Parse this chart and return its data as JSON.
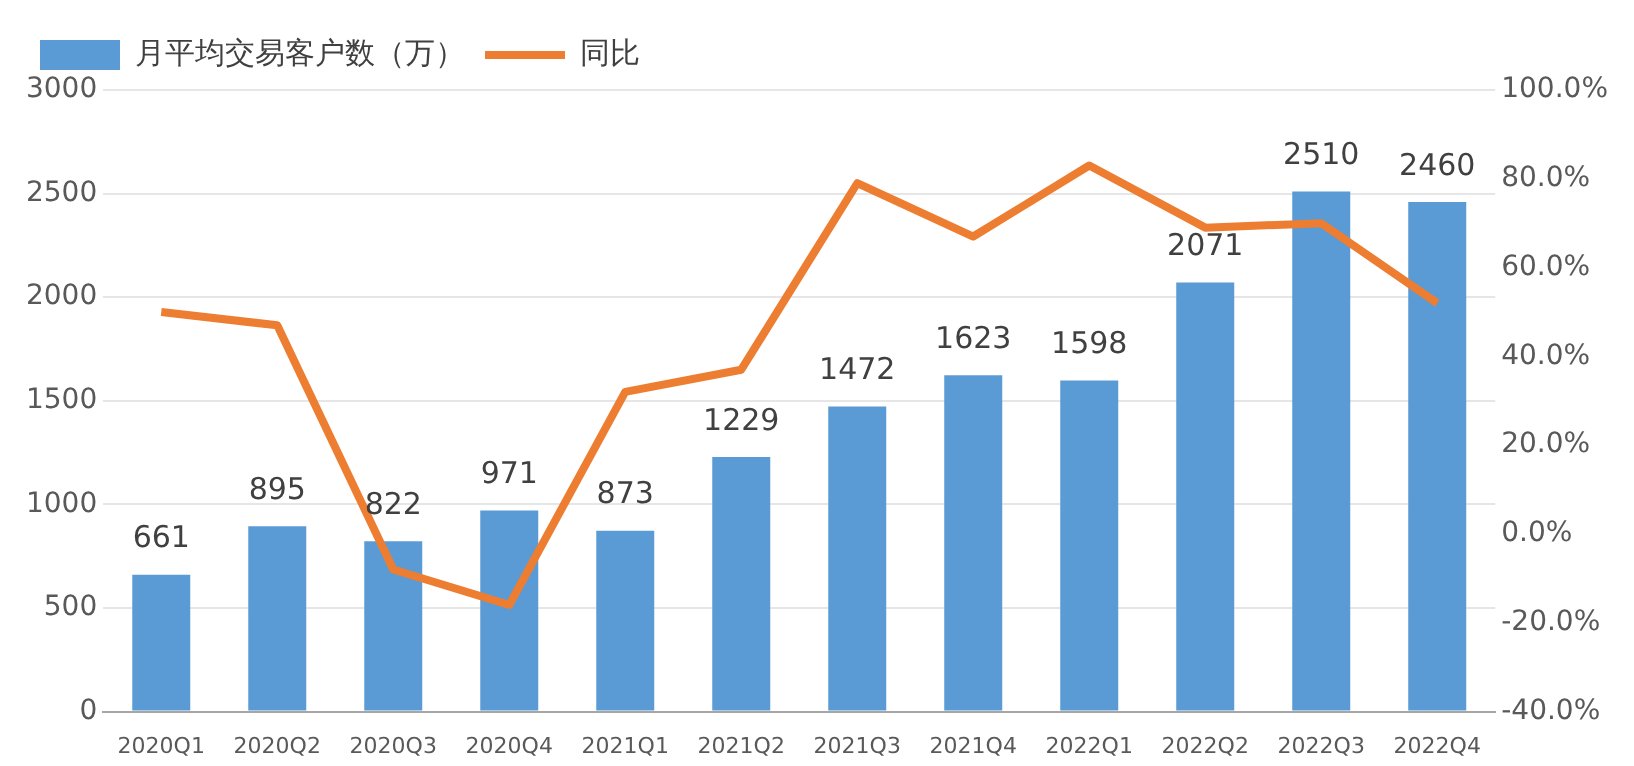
{
  "chart_data": {
    "type": "bar",
    "categories": [
      "2020Q1",
      "2020Q2",
      "2020Q3",
      "2020Q4",
      "2021Q1",
      "2021Q2",
      "2021Q3",
      "2021Q4",
      "2022Q1",
      "2022Q2",
      "2022Q3",
      "2022Q4"
    ],
    "series": [
      {
        "name": "月平均交易客户数（万）",
        "color": "#5b9bd5",
        "values": [
          661,
          895,
          822,
          971,
          873,
          1229,
          1472,
          1623,
          1598,
          2071,
          2510,
          2460
        ],
        "value_labels": [
          "661",
          "895",
          "822",
          "971",
          "873",
          "1229",
          "1472",
          "1623",
          "1598",
          "2071",
          "2510",
          "2460"
        ]
      },
      {
        "name": "同比",
        "type": "line",
        "axis": "y2",
        "color": "#ed7d31",
        "values": [
          50,
          47,
          -8,
          -16,
          32,
          37,
          79,
          67,
          83,
          69,
          70,
          52
        ]
      }
    ],
    "ylim": [
      0,
      3000
    ],
    "yticks": [
      0,
      500,
      1000,
      1500,
      2000,
      2500,
      3000
    ],
    "y2lim": [
      -40,
      100
    ],
    "y2ticks": [
      {
        "value": -40,
        "label": "-40.0%"
      },
      {
        "value": -20,
        "label": "-20.0%"
      },
      {
        "value": 0,
        "label": "0.0%"
      },
      {
        "value": 20,
        "label": "20.0%"
      },
      {
        "value": 40,
        "label": "40.0%"
      },
      {
        "value": 60,
        "label": "60.0%"
      },
      {
        "value": 80,
        "label": "80.0%"
      },
      {
        "value": 100,
        "label": "100.0%"
      }
    ],
    "grid": "y",
    "legend": "top left",
    "marker": "none"
  }
}
